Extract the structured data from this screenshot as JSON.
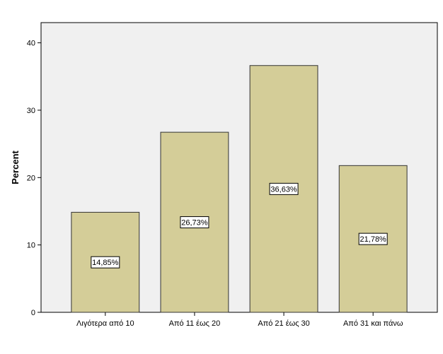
{
  "chart_data": {
    "type": "bar",
    "title": "",
    "xlabel": "",
    "ylabel": "Percent",
    "ylim": [
      0,
      43
    ],
    "yticks": [
      0,
      10,
      20,
      30,
      40
    ],
    "categories": [
      "Λιγότερα από 10",
      "Από 11 έως 20",
      "Από 21 έως 30",
      "Από 31 και πάνω"
    ],
    "values": [
      14.85,
      26.73,
      36.63,
      21.78
    ],
    "data_labels": [
      "14,85%",
      "26,73%",
      "36,63%",
      "21,78%"
    ],
    "grid": false,
    "colors": {
      "bar_fill": "#d4cd98",
      "bar_stroke": "#333333",
      "plot_background": "#f0f0f0"
    }
  }
}
